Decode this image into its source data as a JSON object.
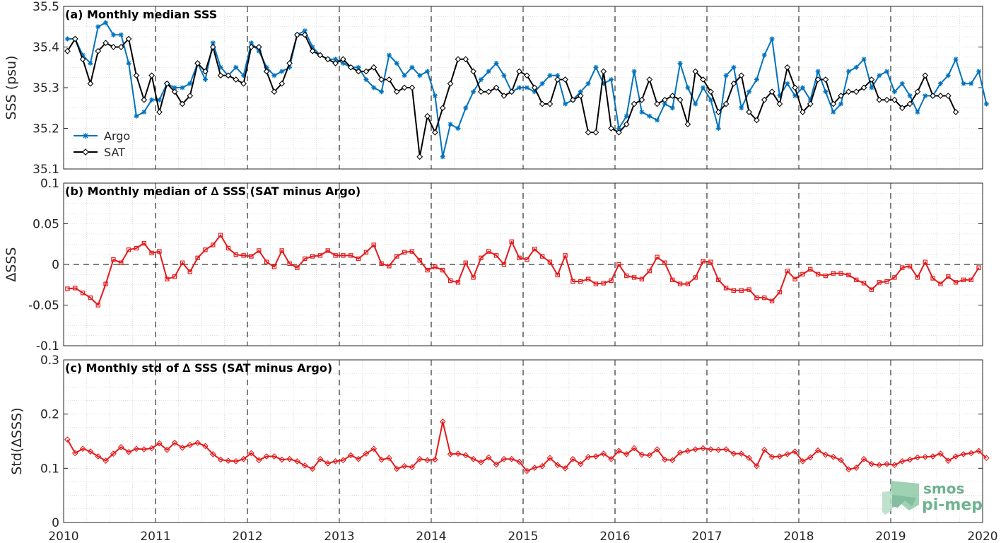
{
  "chart_data": [
    {
      "type": "line",
      "title": "(a) Monthly median SSS",
      "xlabel": "",
      "ylabel": "SSS (psu)",
      "xlim": [
        2010,
        2020
      ],
      "ylim": [
        35.1,
        35.5
      ],
      "xticks": [
        "2010",
        "2011",
        "2012",
        "2013",
        "2014",
        "2015",
        "2016",
        "2017",
        "2018",
        "2019",
        "2020"
      ],
      "yticks": [
        "35.1",
        "35.2",
        "35.3",
        "35.4",
        "35.5"
      ],
      "grid": true,
      "legend_position": "bottom-left",
      "series": [
        {
          "name": "Argo",
          "color": "#0072bd",
          "marker": "star",
          "values": [
            35.42,
            35.42,
            35.38,
            35.36,
            35.45,
            35.46,
            35.43,
            35.43,
            35.36,
            35.23,
            35.24,
            35.27,
            35.27,
            35.31,
            35.3,
            35.3,
            35.31,
            35.36,
            35.32,
            35.41,
            35.35,
            35.33,
            35.35,
            35.33,
            35.41,
            35.39,
            35.35,
            35.33,
            35.34,
            35.35,
            35.43,
            35.44,
            35.4,
            35.38,
            35.37,
            35.37,
            35.36,
            35.35,
            35.35,
            35.32,
            35.3,
            35.29,
            35.38,
            35.36,
            35.33,
            35.35,
            35.33,
            35.34,
            35.28,
            35.13,
            35.21,
            35.2,
            35.25,
            35.29,
            35.32,
            35.34,
            35.36,
            35.33,
            35.29,
            35.3,
            35.3,
            35.29,
            35.31,
            35.33,
            35.33,
            35.26,
            35.27,
            35.29,
            35.31,
            35.35,
            35.31,
            35.32,
            35.2,
            35.23,
            35.34,
            35.24,
            35.23,
            35.22,
            35.26,
            35.25,
            35.36,
            35.3,
            35.26,
            35.3,
            35.27,
            35.2,
            35.33,
            35.35,
            35.25,
            35.29,
            35.32,
            35.38,
            35.42,
            35.28,
            35.31,
            35.28,
            35.3,
            35.27,
            35.34,
            35.29,
            35.24,
            35.26,
            35.34,
            35.35,
            35.37,
            35.3,
            35.33,
            35.34,
            35.29,
            35.31,
            35.28,
            35.24,
            35.28,
            35.28,
            35.31,
            35.33,
            35.37,
            35.31,
            35.31,
            35.34,
            35.26
          ]
        },
        {
          "name": "SAT",
          "color": "#000000",
          "marker": "diamond",
          "values": [
            35.39,
            35.42,
            35.37,
            35.31,
            35.39,
            35.41,
            35.4,
            35.4,
            35.42,
            35.33,
            35.27,
            35.33,
            35.24,
            35.31,
            35.29,
            35.26,
            35.28,
            35.36,
            35.34,
            35.4,
            35.33,
            35.33,
            35.32,
            35.31,
            35.4,
            35.4,
            35.34,
            35.29,
            35.31,
            35.36,
            35.43,
            35.43,
            35.39,
            35.38,
            35.37,
            35.36,
            35.37,
            35.35,
            35.34,
            35.34,
            35.35,
            35.32,
            35.32,
            35.29,
            35.3,
            35.3,
            35.13,
            35.23,
            35.19,
            35.25,
            35.31,
            35.37,
            35.37,
            35.34,
            35.29,
            35.29,
            35.3,
            35.28,
            35.29,
            35.34,
            35.33,
            35.3,
            35.26,
            35.26,
            35.32,
            35.32,
            35.27,
            35.28,
            35.19,
            35.19,
            35.34,
            35.2,
            35.19,
            35.21,
            35.26,
            35.27,
            35.32,
            35.26,
            35.27,
            35.28,
            35.27,
            35.21,
            35.34,
            35.32,
            35.29,
            35.24,
            35.26,
            35.31,
            35.33,
            35.24,
            35.22,
            35.27,
            35.29,
            35.26,
            35.35,
            35.3,
            35.24,
            35.26,
            35.32,
            35.32,
            35.26,
            35.28,
            35.29,
            35.29,
            35.3,
            35.32,
            35.27,
            35.27,
            35.27,
            35.25,
            35.26,
            35.29,
            35.33,
            35.28,
            35.28,
            35.28,
            35.24
          ]
        }
      ]
    },
    {
      "type": "line",
      "title": "(b) Monthly median of ∆ SSS (SAT minus Argo)",
      "xlabel": "",
      "ylabel": "∆SSS",
      "xlim": [
        2010,
        2020
      ],
      "ylim": [
        -0.1,
        0.1
      ],
      "xticks": [
        "2010",
        "2011",
        "2012",
        "2013",
        "2014",
        "2015",
        "2016",
        "2017",
        "2018",
        "2019",
        "2020"
      ],
      "yticks": [
        "-0.1",
        "-0.05",
        "0",
        "0.05",
        "0.1"
      ],
      "grid": true,
      "series": [
        {
          "name": "",
          "color": "#e41a1c",
          "marker": "square",
          "values": [
            -0.03,
            -0.029,
            -0.035,
            -0.041,
            -0.05,
            -0.024,
            0.006,
            0.002,
            0.018,
            0.02,
            0.026,
            0.014,
            0.016,
            -0.018,
            -0.015,
            0.002,
            -0.009,
            0.008,
            0.018,
            0.024,
            0.036,
            0.02,
            0.012,
            0.011,
            0.01,
            0.017,
            0.003,
            -0.003,
            0.017,
            0.001,
            -0.004,
            0.007,
            0.01,
            0.011,
            0.017,
            0.011,
            0.011,
            0.011,
            0.007,
            0.015,
            0.024,
            0.001,
            -0.002,
            0.01,
            0.015,
            0.016,
            0.005,
            -0.007,
            -0.003,
            -0.007,
            -0.02,
            -0.022,
            0.002,
            -0.016,
            0.008,
            0.016,
            0.011,
            0.0,
            0.028,
            0.008,
            0.006,
            0.019,
            0.01,
            0.003,
            -0.013,
            0.011,
            -0.021,
            -0.021,
            -0.018,
            -0.024,
            -0.023,
            -0.02,
            0.0,
            -0.014,
            -0.016,
            -0.018,
            -0.008,
            0.009,
            0.002,
            -0.019,
            -0.024,
            -0.024,
            -0.016,
            0.004,
            0.003,
            -0.019,
            -0.029,
            -0.032,
            -0.032,
            -0.031,
            -0.041,
            -0.041,
            -0.045,
            -0.034,
            -0.008,
            -0.018,
            -0.012,
            -0.006,
            -0.012,
            -0.014,
            -0.011,
            -0.011,
            -0.013,
            -0.019,
            -0.023,
            -0.031,
            -0.022,
            -0.021,
            -0.016,
            -0.004,
            -0.002,
            -0.016,
            0.003,
            -0.017,
            -0.024,
            -0.015,
            -0.022,
            -0.019,
            -0.019,
            -0.004
          ]
        }
      ]
    },
    {
      "type": "line",
      "title": "(c) Monthly std of ∆ SSS (SAT minus Argo)",
      "xlabel": "",
      "ylabel": "Std(∆SSS)",
      "xlim": [
        2010,
        2020
      ],
      "ylim": [
        0,
        0.3
      ],
      "xticks": [
        "2010",
        "2011",
        "2012",
        "2013",
        "2014",
        "2015",
        "2016",
        "2017",
        "2018",
        "2019",
        "2020"
      ],
      "yticks": [
        "0",
        "0.1",
        "0.2",
        "0.3"
      ],
      "grid": true,
      "series": [
        {
          "name": "",
          "color": "#e41a1c",
          "marker": "diamond",
          "values": [
            0.153,
            0.128,
            0.136,
            0.131,
            0.122,
            0.114,
            0.127,
            0.139,
            0.13,
            0.136,
            0.135,
            0.137,
            0.146,
            0.134,
            0.147,
            0.138,
            0.143,
            0.147,
            0.141,
            0.126,
            0.116,
            0.114,
            0.113,
            0.117,
            0.128,
            0.115,
            0.122,
            0.122,
            0.116,
            0.117,
            0.113,
            0.105,
            0.099,
            0.117,
            0.109,
            0.113,
            0.115,
            0.124,
            0.117,
            0.127,
            0.136,
            0.116,
            0.119,
            0.099,
            0.104,
            0.102,
            0.117,
            0.115,
            0.116,
            0.186,
            0.126,
            0.127,
            0.124,
            0.117,
            0.111,
            0.12,
            0.107,
            0.117,
            0.117,
            0.112,
            0.095,
            0.101,
            0.104,
            0.119,
            0.106,
            0.1,
            0.117,
            0.108,
            0.121,
            0.122,
            0.127,
            0.117,
            0.132,
            0.126,
            0.137,
            0.125,
            0.124,
            0.135,
            0.116,
            0.115,
            0.129,
            0.132,
            0.135,
            0.137,
            0.135,
            0.134,
            0.135,
            0.127,
            0.127,
            0.119,
            0.104,
            0.134,
            0.121,
            0.122,
            0.126,
            0.131,
            0.113,
            0.12,
            0.133,
            0.125,
            0.121,
            0.115,
            0.098,
            0.101,
            0.117,
            0.108,
            0.106,
            0.108,
            0.106,
            0.113,
            0.116,
            0.12,
            0.121,
            0.122,
            0.127,
            0.114,
            0.122,
            0.126,
            0.128,
            0.132,
            0.119
          ]
        }
      ]
    }
  ],
  "legend": {
    "argo_label": "Argo",
    "sat_label": "SAT"
  },
  "logo": {
    "line1": "smos",
    "line2": "pi-mep",
    "color": "#6fb28f"
  }
}
